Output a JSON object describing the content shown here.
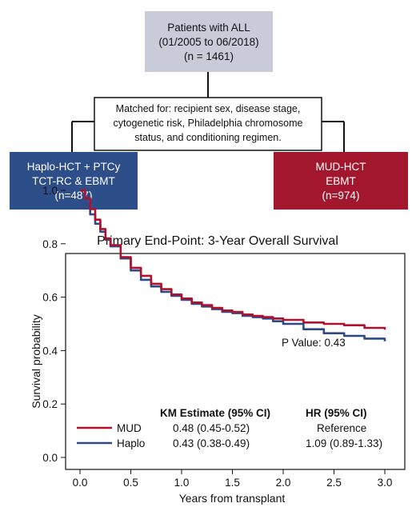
{
  "flow": {
    "source": {
      "lines": [
        "Patients with ALL",
        "(01/2005 to 06/2018)",
        "(n = 1461)"
      ],
      "fill": "#c9cbd8"
    },
    "matching": {
      "lines": [
        "Matched for: recipient sex, disease stage,",
        "cytogenetic risk, Philadelphia chromosome",
        "status, and conditioning regimen."
      ]
    },
    "haplo_box": {
      "lines": [
        "Haplo-HCT + PTCy",
        "TCT-RC & EBMT",
        "(n=487)"
      ],
      "fill": "#2e4e8a"
    },
    "mud_box": {
      "lines": [
        "MUD-HCT",
        "EBMT",
        "(n=974)"
      ],
      "fill": "#a3172e"
    }
  },
  "chart_data": {
    "type": "line",
    "title": "Primary End-Point: 3-Year Overall Survival",
    "xlabel": "Years from transplant",
    "ylabel": "Survival probability",
    "xlim": [
      0,
      3.0
    ],
    "ylim": [
      0,
      1.0
    ],
    "xticks": [
      "0.0",
      "0.5",
      "1.0",
      "1.5",
      "2.0",
      "2.5",
      "3.0"
    ],
    "yticks": [
      "0.0",
      "0.2",
      "0.4",
      "0.6",
      "0.8",
      "1.0"
    ],
    "annotation": "P Value: 0.43",
    "series": [
      {
        "name": "MUD",
        "color": "#b0102c",
        "x": [
          0,
          0.05,
          0.1,
          0.15,
          0.2,
          0.25,
          0.3,
          0.4,
          0.5,
          0.6,
          0.7,
          0.8,
          0.9,
          1.0,
          1.1,
          1.2,
          1.3,
          1.4,
          1.5,
          1.6,
          1.7,
          1.8,
          1.9,
          2.0,
          2.2,
          2.4,
          2.6,
          2.8,
          3.0
        ],
        "y": [
          1.0,
          0.97,
          0.93,
          0.89,
          0.855,
          0.82,
          0.795,
          0.75,
          0.71,
          0.68,
          0.65,
          0.63,
          0.61,
          0.595,
          0.58,
          0.57,
          0.56,
          0.55,
          0.545,
          0.535,
          0.53,
          0.525,
          0.52,
          0.515,
          0.505,
          0.5,
          0.495,
          0.485,
          0.478
        ]
      },
      {
        "name": "Haplo",
        "color": "#2e4a86",
        "x": [
          0,
          0.05,
          0.1,
          0.15,
          0.2,
          0.25,
          0.3,
          0.4,
          0.5,
          0.6,
          0.7,
          0.8,
          0.9,
          1.0,
          1.1,
          1.2,
          1.3,
          1.4,
          1.5,
          1.6,
          1.7,
          1.8,
          1.9,
          2.0,
          2.2,
          2.4,
          2.6,
          2.8,
          3.0
        ],
        "y": [
          1.0,
          0.95,
          0.91,
          0.875,
          0.845,
          0.815,
          0.79,
          0.745,
          0.7,
          0.665,
          0.64,
          0.62,
          0.605,
          0.59,
          0.575,
          0.565,
          0.555,
          0.545,
          0.54,
          0.53,
          0.525,
          0.52,
          0.51,
          0.5,
          0.48,
          0.465,
          0.455,
          0.445,
          0.435
        ]
      }
    ],
    "table": {
      "headers": [
        "KM Estimate (95% CI)",
        "HR (95% CI)"
      ],
      "rows": [
        {
          "label": "MUD",
          "km": "0.48 (0.45-0.52)",
          "hr": "Reference"
        },
        {
          "label": "Haplo",
          "km": "0.43 (0.38-0.49)",
          "hr": "1.09 (0.89-1.33)"
        }
      ]
    }
  }
}
